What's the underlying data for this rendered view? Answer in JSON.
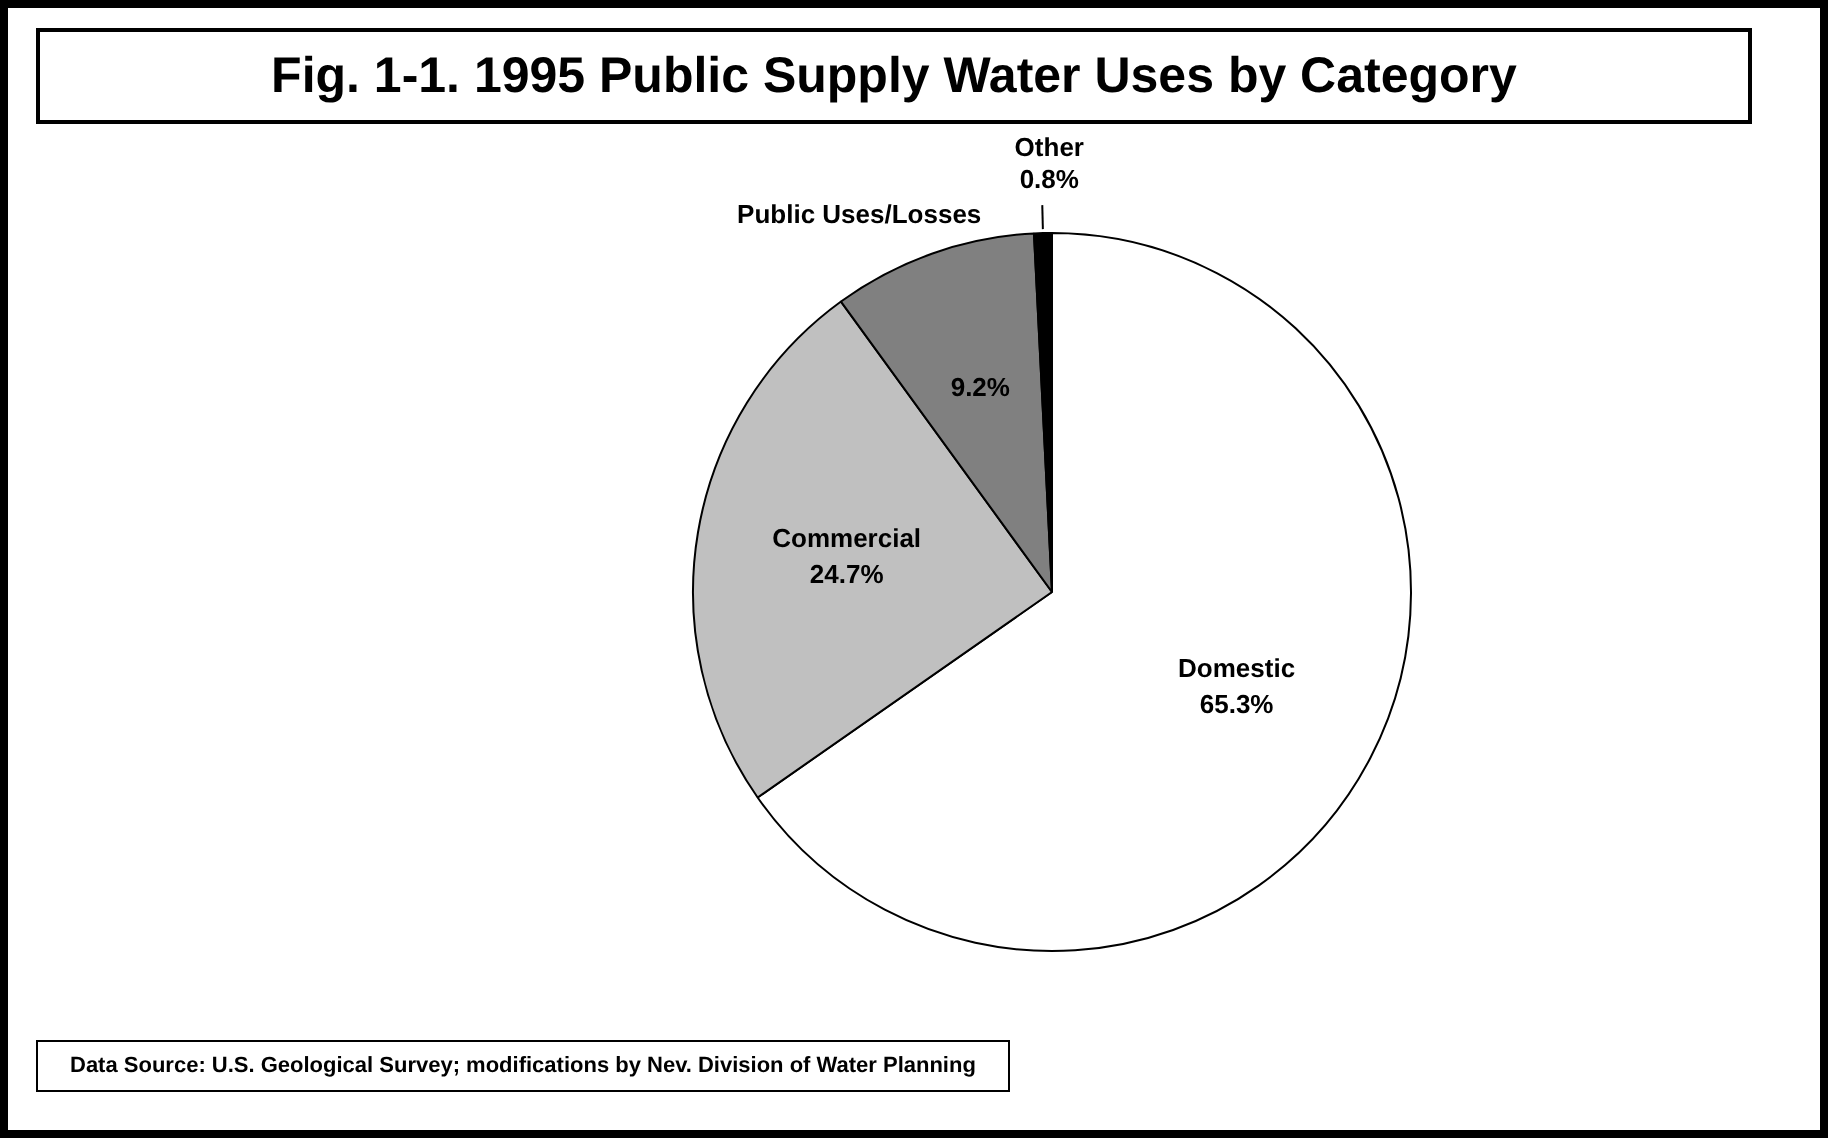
{
  "chart_data": {
    "type": "pie",
    "title": "Fig. 1-1. 1995 Public Supply Water Uses by Category",
    "categories": [
      "Domestic",
      "Commercial",
      "Public Uses/Losses",
      "Other"
    ],
    "values": [
      65.3,
      24.7,
      9.2,
      0.8
    ],
    "value_labels": [
      "65.3%",
      "24.7%",
      "9.2%",
      "0.8%"
    ],
    "colors": [
      "#ffffff",
      "#c0c0c0",
      "#808080",
      "#000000"
    ],
    "legend": false,
    "annotations": [
      "Data Source: U.S. Geological Survey; modifications by Nev. Division of Water Planning"
    ]
  }
}
